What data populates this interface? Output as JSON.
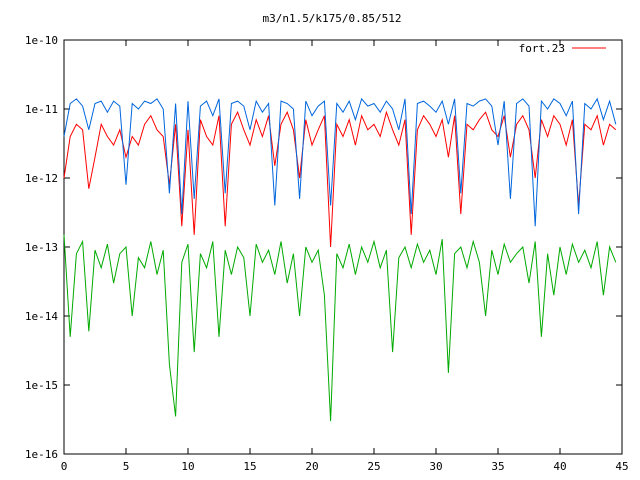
{
  "chart_data": {
    "type": "line",
    "title": "m3/n1.5/k175/0.85/512",
    "xlabel": "",
    "ylabel": "",
    "xlim": [
      0,
      45
    ],
    "ylim": [
      1e-16,
      1e-10
    ],
    "yscale": "log",
    "grid": false,
    "legend_position": "top-right",
    "x_ticks": [
      "0",
      "5",
      "10",
      "15",
      "20",
      "25",
      "30",
      "35",
      "40",
      "45"
    ],
    "y_ticks": [
      "1e-16",
      "1e-15",
      "1e-14",
      "1e-13",
      "1e-12",
      "1e-11",
      "1e-10"
    ],
    "series": [
      {
        "name": "fort.23",
        "color": "#ff0000",
        "in_legend": true,
        "x": [
          0,
          0.5,
          1,
          1.5,
          2,
          2.5,
          3,
          3.5,
          4,
          4.5,
          5,
          5.5,
          6,
          6.5,
          7,
          7.5,
          8,
          8.5,
          9,
          9.5,
          10,
          10.5,
          11,
          11.5,
          12,
          12.5,
          13,
          13.5,
          14,
          14.5,
          15,
          15.5,
          16,
          16.5,
          17,
          17.5,
          18,
          18.5,
          19,
          19.5,
          20,
          20.5,
          21,
          21.5,
          22,
          22.5,
          23,
          23.5,
          24,
          24.5,
          25,
          25.5,
          26,
          26.5,
          27,
          27.5,
          28,
          28.5,
          29,
          29.5,
          30,
          30.5,
          31,
          31.5,
          32,
          32.5,
          33,
          33.5,
          34,
          34.5,
          35,
          35.5,
          36,
          36.5,
          37,
          37.5,
          38,
          38.5,
          39,
          39.5,
          40,
          40.5,
          41,
          41.5,
          42,
          42.5,
          43,
          43.5,
          44,
          44.5
        ],
        "y": [
          1e-12,
          4e-12,
          6e-12,
          5e-12,
          7e-13,
          2e-12,
          6e-12,
          4e-12,
          3e-12,
          5e-12,
          2e-12,
          4e-12,
          3e-12,
          6e-12,
          8e-12,
          5e-12,
          4e-12,
          8e-13,
          6e-12,
          2e-13,
          5e-12,
          1.5e-13,
          7e-12,
          4e-12,
          3e-12,
          8e-12,
          2e-13,
          6e-12,
          9e-12,
          5e-12,
          3e-12,
          7e-12,
          4e-12,
          8e-12,
          1.5e-12,
          6e-12,
          9e-12,
          5e-12,
          1e-12,
          7e-12,
          3e-12,
          5e-12,
          8e-12,
          1e-13,
          6e-12,
          4e-12,
          7e-12,
          3e-12,
          8e-12,
          5e-12,
          6e-12,
          4e-12,
          9e-12,
          5e-12,
          3e-12,
          7e-12,
          1.5e-13,
          5e-12,
          8e-12,
          6e-12,
          4e-12,
          7e-12,
          2e-12,
          8e-12,
          3e-13,
          6e-12,
          5e-12,
          7e-12,
          9e-12,
          5e-12,
          4e-12,
          8e-12,
          2e-12,
          6e-12,
          8e-12,
          5e-12,
          1e-12,
          7e-12,
          4e-12,
          8e-12,
          6e-12,
          3e-12,
          7e-12,
          4e-13,
          6e-12,
          5e-12,
          8e-12,
          3e-12,
          6e-12,
          5e-12
        ]
      },
      {
        "name": "",
        "color": "#0066dd",
        "in_legend": false,
        "x": [
          0,
          0.5,
          1,
          1.5,
          2,
          2.5,
          3,
          3.5,
          4,
          4.5,
          5,
          5.5,
          6,
          6.5,
          7,
          7.5,
          8,
          8.5,
          9,
          9.5,
          10,
          10.5,
          11,
          11.5,
          12,
          12.5,
          13,
          13.5,
          14,
          14.5,
          15,
          15.5,
          16,
          16.5,
          17,
          17.5,
          18,
          18.5,
          19,
          19.5,
          20,
          20.5,
          21,
          21.5,
          22,
          22.5,
          23,
          23.5,
          24,
          24.5,
          25,
          25.5,
          26,
          26.5,
          27,
          27.5,
          28,
          28.5,
          29,
          29.5,
          30,
          30.5,
          31,
          31.5,
          32,
          32.5,
          33,
          33.5,
          34,
          34.5,
          35,
          35.5,
          36,
          36.5,
          37,
          37.5,
          38,
          38.5,
          39,
          39.5,
          40,
          40.5,
          41,
          41.5,
          42,
          42.5,
          43,
          43.5,
          44,
          44.5
        ],
        "y": [
          4e-12,
          1.2e-11,
          1.4e-11,
          1.1e-11,
          5e-12,
          1.2e-11,
          1.3e-11,
          9e-12,
          1.3e-11,
          1.1e-11,
          8e-13,
          1.2e-11,
          1e-11,
          1.3e-11,
          1.2e-11,
          1.4e-11,
          1e-11,
          6e-13,
          1.2e-11,
          3e-13,
          1.3e-11,
          5e-13,
          1.1e-11,
          1.3e-11,
          8e-12,
          1.4e-11,
          6e-13,
          1.2e-11,
          1.3e-11,
          1.1e-11,
          5e-12,
          1.3e-11,
          9e-12,
          1.2e-11,
          4e-13,
          1.3e-11,
          1.2e-11,
          1e-11,
          5e-13,
          1.3e-11,
          8e-12,
          1.1e-11,
          1.3e-11,
          4e-13,
          1.2e-11,
          9e-12,
          1.3e-11,
          7e-12,
          1.4e-11,
          1.1e-11,
          1.2e-11,
          9e-12,
          1.3e-11,
          1e-11,
          5e-12,
          1.4e-11,
          3e-13,
          1.2e-11,
          1.3e-11,
          1.1e-11,
          9e-12,
          1.3e-11,
          6e-12,
          1.4e-11,
          6e-13,
          1.2e-11,
          1.1e-11,
          1.3e-11,
          1.4e-11,
          1.1e-11,
          3e-12,
          1.3e-11,
          5e-13,
          1.2e-11,
          1.4e-11,
          1.1e-11,
          2e-13,
          1.3e-11,
          1e-11,
          1.4e-11,
          1.2e-11,
          8e-12,
          1.3e-11,
          3e-13,
          1.2e-11,
          1e-11,
          1.4e-11,
          7e-12,
          1.3e-11,
          6e-12
        ]
      },
      {
        "name": "",
        "color": "#00aa00",
        "in_legend": false,
        "x": [
          0,
          0.5,
          1,
          1.5,
          2,
          2.5,
          3,
          3.5,
          4,
          4.5,
          5,
          5.5,
          6,
          6.5,
          7,
          7.5,
          8,
          8.5,
          9,
          9.5,
          10,
          10.5,
          11,
          11.5,
          12,
          12.5,
          13,
          13.5,
          14,
          14.5,
          15,
          15.5,
          16,
          16.5,
          17,
          17.5,
          18,
          18.5,
          19,
          19.5,
          20,
          20.5,
          21,
          21.5,
          22,
          22.5,
          23,
          23.5,
          24,
          24.5,
          25,
          25.5,
          26,
          26.5,
          27,
          27.5,
          28,
          28.5,
          29,
          29.5,
          30,
          30.5,
          31,
          31.5,
          32,
          32.5,
          33,
          33.5,
          34,
          34.5,
          35,
          35.5,
          36,
          36.5,
          37,
          37.5,
          38,
          38.5,
          39,
          39.5,
          40,
          40.5,
          41,
          41.5,
          42,
          42.5,
          43,
          43.5,
          44,
          44.5
        ],
        "y": [
          1.5e-13,
          5e-15,
          8e-14,
          1.2e-13,
          6e-15,
          9e-14,
          5e-14,
          1.1e-13,
          3e-14,
          8e-14,
          1e-13,
          1e-14,
          7e-14,
          5e-14,
          1.2e-13,
          4e-14,
          9e-14,
          2e-15,
          3.5e-16,
          6e-14,
          1.1e-13,
          3e-15,
          8e-14,
          5e-14,
          1.2e-13,
          5e-15,
          9e-14,
          4e-14,
          1e-13,
          7e-14,
          1e-14,
          1.1e-13,
          6e-14,
          9e-14,
          4e-14,
          1.2e-13,
          3e-14,
          8e-14,
          1e-14,
          1e-13,
          6e-14,
          9e-14,
          2e-14,
          3e-16,
          8e-14,
          5e-14,
          1.1e-13,
          4e-14,
          1e-13,
          6e-14,
          1.2e-13,
          5e-14,
          9e-14,
          3e-15,
          7e-14,
          1e-13,
          5e-14,
          1.1e-13,
          6e-14,
          9e-14,
          4e-14,
          1.3e-13,
          1.5e-15,
          8e-14,
          1e-13,
          5e-14,
          1.2e-13,
          6e-14,
          1e-14,
          9e-14,
          4e-14,
          1.1e-13,
          6e-14,
          8e-14,
          1e-13,
          3e-14,
          1.2e-13,
          5e-15,
          8e-14,
          2e-14,
          1e-13,
          4e-14,
          1.1e-13,
          6e-14,
          9e-14,
          5e-14,
          1.2e-13,
          2e-14,
          1e-13,
          6e-14
        ]
      }
    ]
  }
}
